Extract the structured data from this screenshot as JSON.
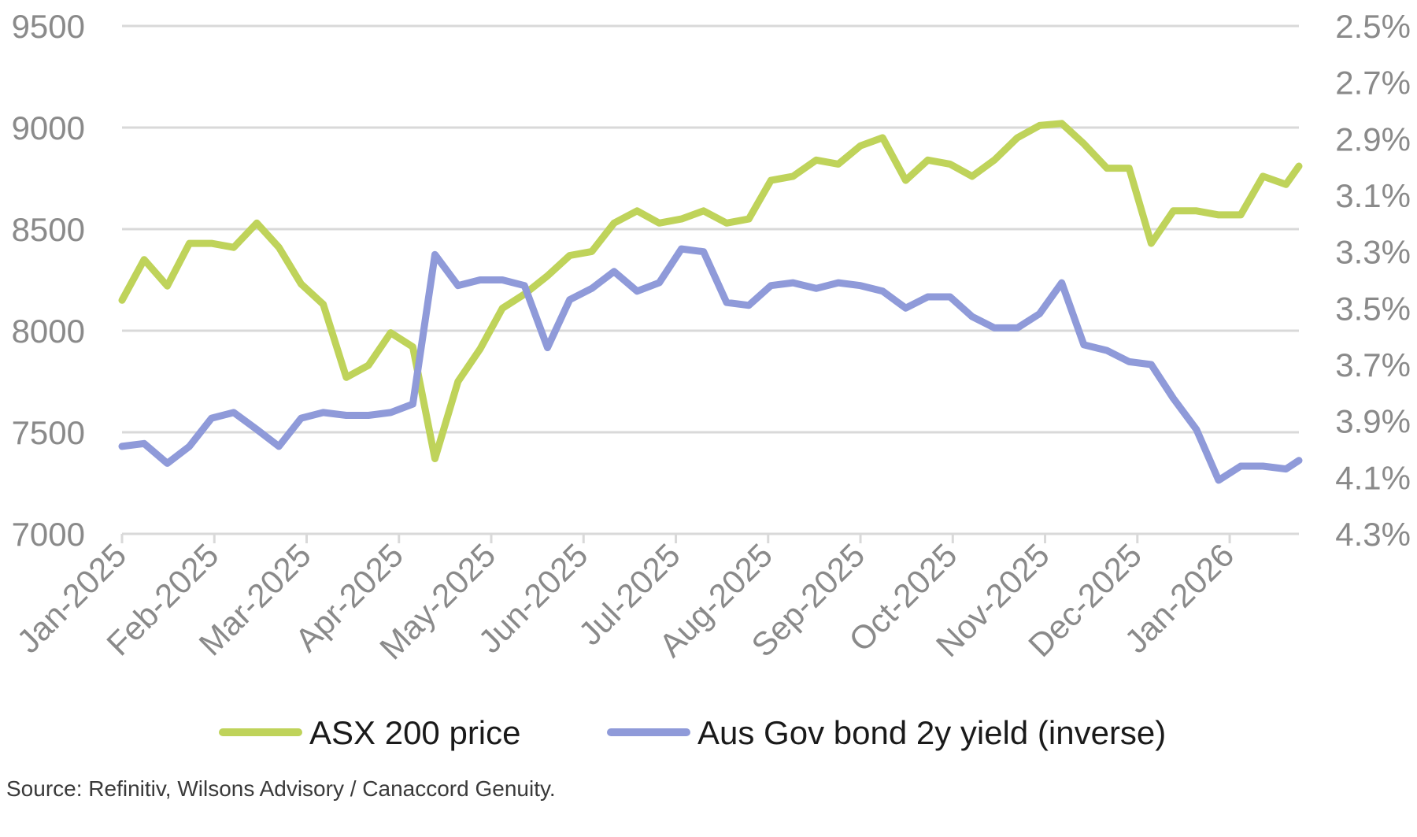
{
  "chart_data": {
    "type": "line",
    "title": "",
    "categories": [
      "Jan-2025",
      "Feb-2025",
      "Mar-2025",
      "Apr-2025",
      "May-2025",
      "Jun-2025",
      "Jul-2025",
      "Aug-2025",
      "Sep-2025",
      "Oct-2025",
      "Nov-2025",
      "Dec-2025",
      "Jan-2026"
    ],
    "x_range": [
      0,
      12.75
    ],
    "left_axis": {
      "ylim": [
        7000,
        9500
      ],
      "ticks": [
        7000,
        7500,
        8000,
        8500,
        9000,
        9500
      ],
      "grid": true
    },
    "right_axis": {
      "inverted": true,
      "ylim": [
        2.5,
        4.3
      ],
      "ticks": [
        "2.5%",
        "2.7%",
        "2.9%",
        "3.1%",
        "3.3%",
        "3.5%",
        "3.7%",
        "3.9%",
        "4.1%",
        "4.3%"
      ],
      "tick_values": [
        2.5,
        2.7,
        2.9,
        3.1,
        3.3,
        3.5,
        3.7,
        3.9,
        4.1,
        4.3
      ]
    },
    "series": [
      {
        "name": "ASX 200 price",
        "axis": "left",
        "color": "#bfd35a",
        "x": [
          0,
          0.24,
          0.49,
          0.73,
          0.97,
          1.21,
          1.46,
          1.7,
          1.94,
          2.18,
          2.43,
          2.67,
          2.91,
          3.15,
          3.39,
          3.64,
          3.88,
          4.12,
          4.36,
          4.61,
          4.85,
          5.09,
          5.33,
          5.58,
          5.82,
          6.06,
          6.3,
          6.55,
          6.79,
          7.03,
          7.27,
          7.52,
          7.76,
          8.0,
          8.24,
          8.49,
          8.73,
          8.97,
          9.21,
          9.45,
          9.7,
          9.94,
          10.18,
          10.42,
          10.67,
          10.91,
          11.15,
          11.39,
          11.64,
          11.88,
          12.12,
          12.36,
          12.61,
          12.75
        ],
        "values": [
          8150,
          8350,
          8220,
          8430,
          8430,
          8410,
          8530,
          8410,
          8230,
          8130,
          7770,
          7830,
          7990,
          7920,
          7370,
          7750,
          7910,
          8110,
          8180,
          8270,
          8370,
          8390,
          8530,
          8590,
          8530,
          8550,
          8590,
          8530,
          8550,
          8740,
          8760,
          8840,
          8820,
          8910,
          8950,
          8740,
          8840,
          8820,
          8760,
          8840,
          8950,
          9010,
          9020,
          8920,
          8800,
          8800,
          8430,
          8590,
          8590,
          8570,
          8570,
          8760,
          8720,
          8810
        ]
      },
      {
        "name": "Aus Gov bond 2y yield (inverse)",
        "axis": "right",
        "color": "#8f9ad9",
        "x": [
          0,
          0.24,
          0.49,
          0.73,
          0.97,
          1.21,
          1.46,
          1.7,
          1.94,
          2.18,
          2.43,
          2.67,
          2.91,
          3.15,
          3.39,
          3.64,
          3.88,
          4.12,
          4.36,
          4.61,
          4.85,
          5.09,
          5.33,
          5.58,
          5.82,
          6.06,
          6.3,
          6.55,
          6.79,
          7.03,
          7.27,
          7.52,
          7.76,
          8.0,
          8.24,
          8.49,
          8.73,
          8.97,
          9.21,
          9.45,
          9.7,
          9.94,
          10.18,
          10.42,
          10.67,
          10.91,
          11.15,
          11.39,
          11.64,
          11.88,
          12.12,
          12.36,
          12.61,
          12.75
        ],
        "values": [
          3.99,
          3.98,
          4.05,
          3.99,
          3.89,
          3.87,
          3.93,
          3.99,
          3.89,
          3.87,
          3.88,
          3.88,
          3.87,
          3.84,
          3.31,
          3.42,
          3.4,
          3.4,
          3.42,
          3.64,
          3.47,
          3.43,
          3.37,
          3.44,
          3.41,
          3.29,
          3.3,
          3.48,
          3.49,
          3.42,
          3.41,
          3.43,
          3.41,
          3.42,
          3.44,
          3.5,
          3.46,
          3.46,
          3.53,
          3.57,
          3.57,
          3.52,
          3.41,
          3.63,
          3.65,
          3.69,
          3.7,
          3.82,
          3.93,
          4.11,
          4.06,
          4.06,
          4.07,
          4.04
        ]
      }
    ],
    "legend_position": "bottom"
  },
  "source": "Source: Refinitiv, Wilsons Advisory / Canaccord Genuity."
}
